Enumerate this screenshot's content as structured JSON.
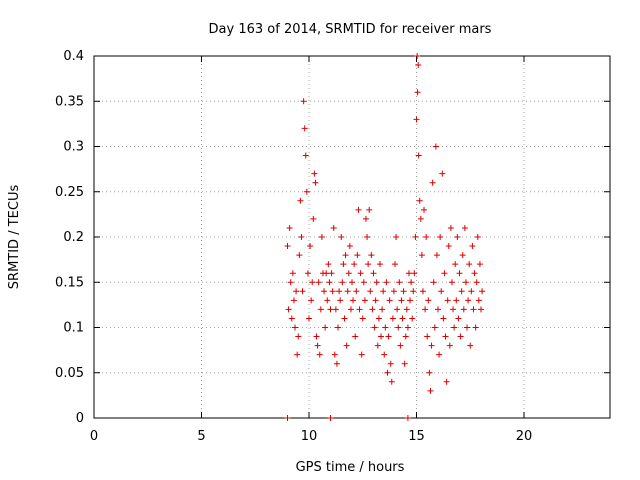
{
  "chart_data": {
    "type": "scatter",
    "title": "Day 163 of 2014, SRMTID for receiver mars",
    "xlabel": "GPS time / hours",
    "ylabel": "SRMTID / TECUs",
    "xlim": [
      0,
      24
    ],
    "ylim": [
      0,
      0.4
    ],
    "xticks": [
      0,
      5,
      10,
      15,
      20
    ],
    "xtick_labels": [
      "0",
      "5",
      "10",
      "15",
      "20"
    ],
    "yticks": [
      0,
      0.05,
      0.1,
      0.15,
      0.2,
      0.25,
      0.3,
      0.35,
      0.4
    ],
    "ytick_labels": [
      "0",
      "0.05",
      "0.1",
      "0.15",
      "0.2",
      "0.25",
      "0.3",
      "0.35",
      "0.4"
    ],
    "grid": true,
    "marker": "+",
    "marker_color": "#dd0000",
    "x_range_hours": [
      8.9,
      18.1
    ],
    "series": [
      {
        "name": "SRMTID",
        "points": [
          [
            9.0,
            0.0
          ],
          [
            11.0,
            0.0
          ],
          [
            14.6,
            0.0
          ],
          [
            9.0,
            0.19
          ],
          [
            9.05,
            0.12
          ],
          [
            9.1,
            0.21
          ],
          [
            9.15,
            0.15
          ],
          [
            9.2,
            0.11
          ],
          [
            9.25,
            0.16
          ],
          [
            9.3,
            0.13
          ],
          [
            9.35,
            0.1
          ],
          [
            9.4,
            0.14
          ],
          [
            9.45,
            0.07
          ],
          [
            9.5,
            0.09
          ],
          [
            9.55,
            0.18
          ],
          [
            9.6,
            0.24
          ],
          [
            9.65,
            0.2
          ],
          [
            9.7,
            0.14
          ],
          [
            9.75,
            0.35
          ],
          [
            9.8,
            0.32
          ],
          [
            9.85,
            0.29
          ],
          [
            9.9,
            0.25
          ],
          [
            9.95,
            0.16
          ],
          [
            10.0,
            0.11
          ],
          [
            10.05,
            0.19
          ],
          [
            10.1,
            0.13
          ],
          [
            10.15,
            0.15
          ],
          [
            10.2,
            0.22
          ],
          [
            10.25,
            0.27
          ],
          [
            10.3,
            0.26
          ],
          [
            10.35,
            0.09
          ],
          [
            10.4,
            0.08
          ],
          [
            10.45,
            0.15
          ],
          [
            10.5,
            0.07
          ],
          [
            10.55,
            0.12
          ],
          [
            10.6,
            0.2
          ],
          [
            10.65,
            0.16
          ],
          [
            10.7,
            0.14
          ],
          [
            10.75,
            0.1
          ],
          [
            10.8,
            0.16
          ],
          [
            10.85,
            0.13
          ],
          [
            10.9,
            0.17
          ],
          [
            10.95,
            0.15
          ],
          [
            11.0,
            0.12
          ],
          [
            11.05,
            0.16
          ],
          [
            11.1,
            0.14
          ],
          [
            11.15,
            0.21
          ],
          [
            11.2,
            0.07
          ],
          [
            11.25,
            0.12
          ],
          [
            11.3,
            0.06
          ],
          [
            11.35,
            0.1
          ],
          [
            11.4,
            0.14
          ],
          [
            11.45,
            0.13
          ],
          [
            11.5,
            0.2
          ],
          [
            11.55,
            0.15
          ],
          [
            11.6,
            0.17
          ],
          [
            11.65,
            0.11
          ],
          [
            11.7,
            0.18
          ],
          [
            11.75,
            0.08
          ],
          [
            11.8,
            0.14
          ],
          [
            11.85,
            0.16
          ],
          [
            11.9,
            0.19
          ],
          [
            11.95,
            0.12
          ],
          [
            12.0,
            0.15
          ],
          [
            12.05,
            0.13
          ],
          [
            12.1,
            0.17
          ],
          [
            12.15,
            0.09
          ],
          [
            12.2,
            0.14
          ],
          [
            12.25,
            0.18
          ],
          [
            12.3,
            0.23
          ],
          [
            12.35,
            0.12
          ],
          [
            12.4,
            0.16
          ],
          [
            12.45,
            0.07
          ],
          [
            12.5,
            0.11
          ],
          [
            12.55,
            0.15
          ],
          [
            12.6,
            0.13
          ],
          [
            12.65,
            0.22
          ],
          [
            12.7,
            0.2
          ],
          [
            12.75,
            0.17
          ],
          [
            12.8,
            0.23
          ],
          [
            12.85,
            0.14
          ],
          [
            12.9,
            0.18
          ],
          [
            12.95,
            0.12
          ],
          [
            13.0,
            0.16
          ],
          [
            13.05,
            0.1
          ],
          [
            13.1,
            0.13
          ],
          [
            13.15,
            0.15
          ],
          [
            13.2,
            0.08
          ],
          [
            13.25,
            0.11
          ],
          [
            13.3,
            0.17
          ],
          [
            13.35,
            0.09
          ],
          [
            13.4,
            0.12
          ],
          [
            13.45,
            0.14
          ],
          [
            13.5,
            0.07
          ],
          [
            13.55,
            0.1
          ],
          [
            13.6,
            0.15
          ],
          [
            13.65,
            0.05
          ],
          [
            13.7,
            0.09
          ],
          [
            13.75,
            0.13
          ],
          [
            13.8,
            0.06
          ],
          [
            13.85,
            0.04
          ],
          [
            13.9,
            0.11
          ],
          [
            13.95,
            0.14
          ],
          [
            14.0,
            0.17
          ],
          [
            14.05,
            0.2
          ],
          [
            14.1,
            0.12
          ],
          [
            14.15,
            0.1
          ],
          [
            14.2,
            0.15
          ],
          [
            14.25,
            0.08
          ],
          [
            14.3,
            0.13
          ],
          [
            14.35,
            0.11
          ],
          [
            14.4,
            0.14
          ],
          [
            14.45,
            0.06
          ],
          [
            14.5,
            0.09
          ],
          [
            14.55,
            0.12
          ],
          [
            14.6,
            0.1
          ],
          [
            14.65,
            0.16
          ],
          [
            14.7,
            0.13
          ],
          [
            14.75,
            0.15
          ],
          [
            14.8,
            0.11
          ],
          [
            14.85,
            0.14
          ],
          [
            14.9,
            0.16
          ],
          [
            14.95,
            0.2
          ],
          [
            15.0,
            0.33
          ],
          [
            15.03,
            0.4
          ],
          [
            15.05,
            0.36
          ],
          [
            15.08,
            0.39
          ],
          [
            15.1,
            0.29
          ],
          [
            15.15,
            0.24
          ],
          [
            15.2,
            0.22
          ],
          [
            15.25,
            0.18
          ],
          [
            15.3,
            0.14
          ],
          [
            15.35,
            0.23
          ],
          [
            15.4,
            0.12
          ],
          [
            15.45,
            0.2
          ],
          [
            15.5,
            0.09
          ],
          [
            15.55,
            0.13
          ],
          [
            15.6,
            0.05
          ],
          [
            15.65,
            0.03
          ],
          [
            15.7,
            0.08
          ],
          [
            15.75,
            0.26
          ],
          [
            15.8,
            0.15
          ],
          [
            15.85,
            0.1
          ],
          [
            15.9,
            0.3
          ],
          [
            15.95,
            0.18
          ],
          [
            16.0,
            0.12
          ],
          [
            16.05,
            0.07
          ],
          [
            16.1,
            0.2
          ],
          [
            16.15,
            0.14
          ],
          [
            16.2,
            0.27
          ],
          [
            16.25,
            0.11
          ],
          [
            16.3,
            0.16
          ],
          [
            16.35,
            0.09
          ],
          [
            16.4,
            0.04
          ],
          [
            16.45,
            0.13
          ],
          [
            16.5,
            0.19
          ],
          [
            16.55,
            0.08
          ],
          [
            16.6,
            0.21
          ],
          [
            16.65,
            0.15
          ],
          [
            16.7,
            0.12
          ],
          [
            16.75,
            0.1
          ],
          [
            16.8,
            0.17
          ],
          [
            16.85,
            0.13
          ],
          [
            16.9,
            0.2
          ],
          [
            16.95,
            0.11
          ],
          [
            17.0,
            0.16
          ],
          [
            17.05,
            0.09
          ],
          [
            17.1,
            0.14
          ],
          [
            17.15,
            0.18
          ],
          [
            17.2,
            0.12
          ],
          [
            17.25,
            0.21
          ],
          [
            17.3,
            0.15
          ],
          [
            17.35,
            0.1
          ],
          [
            17.4,
            0.13
          ],
          [
            17.45,
            0.17
          ],
          [
            17.5,
            0.08
          ],
          [
            17.55,
            0.14
          ],
          [
            17.6,
            0.19
          ],
          [
            17.65,
            0.12
          ],
          [
            17.7,
            0.16
          ],
          [
            17.75,
            0.1
          ],
          [
            17.8,
            0.15
          ],
          [
            17.85,
            0.2
          ],
          [
            17.9,
            0.13
          ],
          [
            17.95,
            0.17
          ],
          [
            18.0,
            0.12
          ],
          [
            18.05,
            0.14
          ]
        ]
      }
    ]
  }
}
